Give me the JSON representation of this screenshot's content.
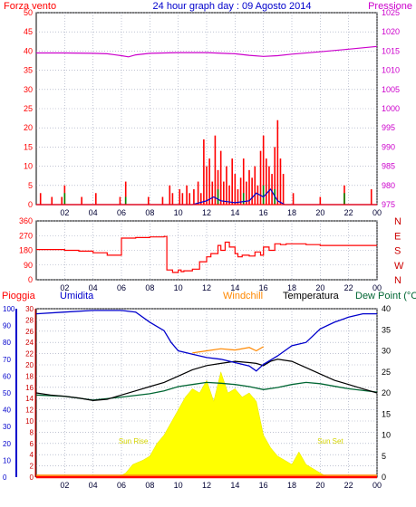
{
  "header": {
    "left_title": "Forza vento",
    "center_title": "24 hour graph day : 09 Agosto 2014",
    "right_title": "Pressione"
  },
  "colors": {
    "red": "#ff0000",
    "blue": "#0000cc",
    "magenta": "#cc00cc",
    "orange": "#ff8800",
    "black": "#000000",
    "green": "#006633",
    "yellow": "#ffff00",
    "grid": "#9aa0b8",
    "axis_dark_red": "#990000"
  },
  "chart_data": [
    {
      "type": "bar",
      "name": "wind",
      "x_ticks": [
        "02",
        "04",
        "06",
        "08",
        "10",
        "12",
        "14",
        "16",
        "18",
        "20",
        "22",
        "00"
      ],
      "y_left": {
        "ticks": [
          "0",
          "5",
          "10",
          "15",
          "20",
          "25",
          "30",
          "35",
          "40",
          "45",
          "50"
        ],
        "range": [
          0,
          50
        ]
      },
      "y_right": {
        "ticks": [
          "975",
          "980",
          "985",
          "990",
          "995",
          "1000",
          "1005",
          "1010",
          "1015",
          "1020",
          "1025"
        ],
        "range": [
          975,
          1025
        ]
      },
      "pressure_series": {
        "x_hours": [
          0,
          2,
          4,
          5,
          6,
          6.5,
          7,
          8,
          10,
          12,
          14,
          15,
          16,
          17,
          18,
          20,
          22,
          24
        ],
        "values": [
          1014.5,
          1014.5,
          1014.4,
          1014.3,
          1013.8,
          1013.5,
          1014.0,
          1014.4,
          1014.6,
          1014.6,
          1014.3,
          1013.9,
          1013.6,
          1013.8,
          1014.2,
          1014.8,
          1015.5,
          1016.2
        ]
      },
      "wind_bars": {
        "x_hours": [
          0.3,
          1.1,
          1.8,
          2.0,
          3.2,
          4.2,
          5.9,
          6.3,
          7.9,
          8.9,
          9.4,
          9.6,
          10.1,
          10.3,
          10.6,
          10.8,
          11.1,
          11.4,
          11.6,
          11.8,
          12.0,
          12.2,
          12.4,
          12.6,
          12.8,
          13.0,
          13.2,
          13.4,
          13.6,
          13.8,
          14.0,
          14.2,
          14.4,
          14.6,
          14.8,
          15.0,
          15.2,
          15.4,
          15.6,
          15.8,
          16.0,
          16.2,
          16.4,
          16.6,
          16.8,
          17.0,
          17.2,
          17.4,
          18.1,
          20.0,
          21.7,
          23.6
        ],
        "values": [
          3,
          2,
          2,
          5,
          2,
          3,
          2,
          6,
          2,
          2,
          5,
          3,
          4,
          3,
          5,
          3,
          4,
          6,
          3,
          17,
          10,
          12,
          6,
          18,
          9,
          14,
          6,
          10,
          5,
          12,
          8,
          4,
          7,
          12,
          6,
          9,
          7,
          10,
          5,
          14,
          18,
          12,
          10,
          8,
          15,
          22,
          12,
          8,
          3,
          2,
          5,
          4
        ]
      },
      "wind_gust_bars": {
        "x_hours": [
          2.0,
          6.3,
          12.8,
          14.6,
          16.0,
          16.8,
          21.7
        ],
        "values": [
          3,
          2,
          4,
          3,
          5,
          4,
          3
        ]
      },
      "wind_low_line": {
        "x_hours": [
          0,
          11,
          12,
          12.5,
          13,
          14,
          15,
          15.5,
          16,
          16.5,
          17,
          17.5,
          24
        ],
        "values": [
          0,
          0,
          1,
          2,
          1,
          0.5,
          1,
          3,
          2,
          4,
          1,
          0,
          0
        ]
      }
    },
    {
      "type": "line",
      "name": "wind-direction",
      "y_left": {
        "ticks": [
          "0",
          "90",
          "180",
          "270",
          "360"
        ],
        "range": [
          0,
          360
        ]
      },
      "y_right": {
        "ticks": [
          "N",
          "W",
          "S",
          "E",
          "N"
        ]
      },
      "direction_series": {
        "x_hours": [
          0,
          1,
          2,
          3,
          4,
          5,
          5.7,
          6,
          7,
          8,
          9,
          9.2,
          9.6,
          10,
          10.2,
          10.4,
          11,
          11.5,
          12,
          12.3,
          12.8,
          13,
          13.3,
          13.6,
          14,
          14.2,
          14.5,
          15,
          15.4,
          15.8,
          16,
          16.4,
          16.8,
          17.2,
          17.6,
          18,
          19,
          20,
          22,
          24
        ],
        "values": [
          185,
          185,
          180,
          175,
          165,
          150,
          150,
          255,
          258,
          262,
          265,
          60,
          45,
          60,
          50,
          55,
          65,
          110,
          140,
          160,
          210,
          180,
          230,
          200,
          160,
          140,
          150,
          145,
          170,
          150,
          200,
          180,
          220,
          215,
          220,
          220,
          215,
          210,
          210,
          210
        ]
      }
    },
    {
      "type": "area",
      "name": "temperature-humidity",
      "labels": {
        "rain": "Pioggia",
        "humidity": "Umidita",
        "windchill": "Windchill",
        "temperature": "Temperatura",
        "dewpoint": "Dew Point (°C",
        "sunrise": "Sun Rise",
        "sunset": "Sun Set"
      },
      "y_humidity": {
        "ticks": [
          "0",
          "10",
          "20",
          "30",
          "40",
          "50",
          "60",
          "70",
          "80",
          "90",
          "100"
        ],
        "range": [
          0,
          100
        ]
      },
      "y_rain": {
        "ticks": [
          "0",
          "2",
          "4",
          "6",
          "8",
          "10",
          "12",
          "14",
          "16",
          "18",
          "20",
          "22",
          "24",
          "26",
          "28",
          "30"
        ],
        "range": [
          0,
          30
        ]
      },
      "y_temp": {
        "ticks": [
          "0",
          "5",
          "10",
          "15",
          "20",
          "25",
          "30",
          "35",
          "40"
        ],
        "range": [
          0,
          40
        ]
      },
      "humidity_series": {
        "x_hours": [
          0,
          2,
          4,
          6,
          7,
          8,
          9,
          9.5,
          10,
          11,
          12,
          13,
          14,
          15,
          15.5,
          16,
          17,
          18,
          19,
          20,
          21,
          22,
          23,
          24
        ],
        "values": [
          97,
          98,
          99,
          99,
          98,
          92,
          87,
          80,
          75,
          73,
          71,
          70,
          68,
          66,
          63,
          67,
          72,
          78,
          80,
          88,
          92,
          95,
          97,
          97
        ]
      },
      "temperature_series": {
        "x_hours": [
          0,
          1,
          2,
          3,
          4,
          5,
          6,
          7,
          8,
          9,
          10,
          11,
          12,
          13,
          14,
          15,
          15.5,
          16,
          16.5,
          17,
          18,
          19,
          20,
          21,
          22,
          23,
          24
        ],
        "values": [
          20,
          19.5,
          19.2,
          18.8,
          18.2,
          18.5,
          19.5,
          20.5,
          21.5,
          22.5,
          24,
          25.5,
          26.5,
          27,
          27.5,
          27.2,
          27,
          26.5,
          27.5,
          28,
          27.5,
          26,
          24.5,
          23,
          22,
          21,
          20
        ]
      },
      "dewpoint_series": {
        "x_hours": [
          0,
          2,
          4,
          6,
          8,
          9,
          10,
          11,
          12,
          13,
          14,
          15,
          16,
          17,
          18,
          19,
          20,
          22,
          24
        ],
        "values": [
          19.5,
          19.2,
          18.3,
          19.0,
          19.8,
          20.5,
          21.5,
          22.0,
          22.5,
          22.3,
          22.0,
          21.5,
          20.8,
          21.3,
          22.0,
          22.5,
          22.2,
          21.0,
          20.2
        ]
      },
      "windchill_series": {
        "x_hours": [
          11,
          12,
          13,
          14,
          15,
          15.5,
          16
        ],
        "values": [
          29.5,
          30.0,
          30.5,
          30.2,
          30.8,
          30.0,
          31.0
        ]
      },
      "solar_series": {
        "x_hours": [
          0,
          5.8,
          6.3,
          6.8,
          7.5,
          8,
          8.5,
          9,
          9.5,
          10,
          10.5,
          11,
          11.5,
          12,
          12.5,
          13,
          13.5,
          14,
          14.5,
          15,
          15.5,
          16,
          16.5,
          17,
          17.5,
          18,
          18.5,
          19,
          19.5,
          20,
          20.5,
          24
        ],
        "values": [
          0,
          0,
          1,
          3,
          4,
          5,
          8,
          10,
          13,
          16,
          19,
          21,
          20,
          23,
          18,
          25,
          20,
          21,
          19,
          20,
          18,
          10,
          7,
          5,
          4,
          3,
          6,
          3,
          2,
          1,
          0,
          0
        ]
      },
      "rain_series": {
        "x_hours": [
          0,
          24
        ],
        "values": [
          0,
          0
        ]
      }
    }
  ]
}
